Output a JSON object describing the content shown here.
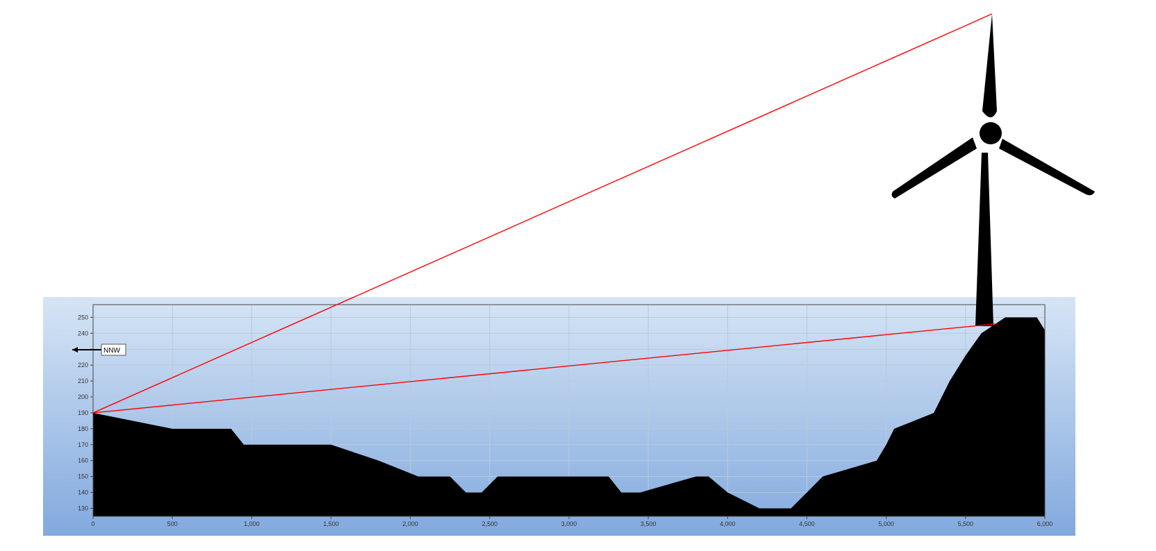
{
  "chart_data": {
    "type": "area",
    "title": "",
    "xlabel": "",
    "ylabel": "",
    "xlim": [
      0,
      6000
    ],
    "ylim": [
      125,
      258
    ],
    "grid": true,
    "x_ticks": [
      0,
      500,
      1000,
      1500,
      2000,
      2500,
      3000,
      3500,
      4000,
      4500,
      5000,
      5500,
      6000
    ],
    "x_tick_labels": [
      "0",
      "500",
      "1,000",
      "1,500",
      "2,000",
      "2,500",
      "3,000",
      "3,500",
      "4,000",
      "4,500",
      "5,000",
      "5,500",
      "6,000"
    ],
    "y_ticks": [
      130,
      140,
      150,
      160,
      170,
      180,
      190,
      200,
      210,
      220,
      230,
      240,
      250
    ],
    "y_tick_labels": [
      "130",
      "140",
      "150",
      "160",
      "170",
      "180",
      "190",
      "200",
      "210",
      "220",
      "",
      "240",
      "250"
    ],
    "series": [
      {
        "x": [
          0,
          500,
          870,
          950,
          1500,
          1800,
          2050,
          2250,
          2350,
          2450,
          2550,
          3250,
          3330,
          3450,
          3800,
          3880,
          4000,
          4200,
          4400,
          4500,
          4600,
          4940,
          5000,
          5050,
          5150,
          5300,
          5400,
          5500,
          5600,
          5750,
          5950,
          6000
        ],
        "y": [
          190,
          180,
          180,
          170,
          170,
          160,
          150,
          150,
          140,
          140,
          150,
          150,
          140,
          140,
          150,
          150,
          140,
          130,
          130,
          140,
          150,
          160,
          170,
          180,
          184,
          190,
          210,
          226,
          240,
          250,
          250,
          242
        ]
      }
    ],
    "direction_label": "NNW",
    "sight_lines": [
      {
        "from": {
          "x": 0,
          "y": 190
        },
        "to": "turbine-blade-tip"
      },
      {
        "from": {
          "x": 0,
          "y": 190
        },
        "to": {
          "x": 5700,
          "y": 246
        }
      }
    ],
    "colors": {
      "terrain": "#000000",
      "sight_line": "#ff0000",
      "background_top": "#d6e5f5",
      "background_bottom": "#82a9de",
      "grid": "#b9c9dc"
    },
    "decoration": "wind-turbine-icon"
  }
}
